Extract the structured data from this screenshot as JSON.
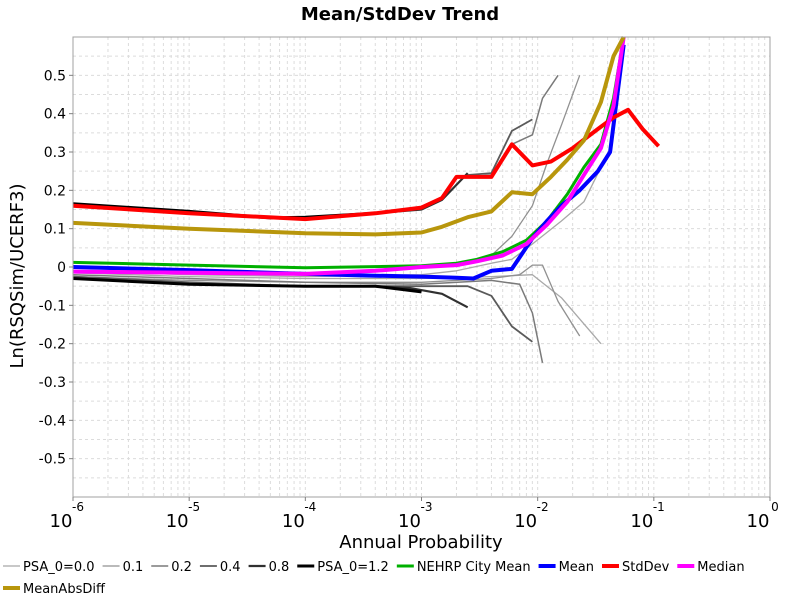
{
  "chart_data": {
    "type": "line",
    "title": "Mean/StdDev Trend",
    "xlabel": "Annual Probability",
    "ylabel": "Ln(RSQSim/UCERF3)",
    "xscale": "log",
    "xlim": [
      1e-06,
      1
    ],
    "ylim": [
      -0.6,
      0.6
    ],
    "grid": true,
    "legend_position": "bottom",
    "x_tick_base": "10",
    "x_ticks": [
      {
        "value": 1e-06,
        "exp": "-6"
      },
      {
        "value": 1e-05,
        "exp": "-5"
      },
      {
        "value": 0.0001,
        "exp": "-4"
      },
      {
        "value": 0.001,
        "exp": "-3"
      },
      {
        "value": 0.01,
        "exp": "-2"
      },
      {
        "value": 0.1,
        "exp": "-1"
      },
      {
        "value": 1,
        "exp": "0"
      }
    ],
    "y_ticks": [
      {
        "value": 0.5,
        "label": "0.5"
      },
      {
        "value": 0.4,
        "label": "0.4"
      },
      {
        "value": 0.3,
        "label": "0.3"
      },
      {
        "value": 0.2,
        "label": "0.2"
      },
      {
        "value": 0.1,
        "label": "0.1"
      },
      {
        "value": 0,
        "label": "0"
      },
      {
        "value": -0.1,
        "label": "-0.1"
      },
      {
        "value": -0.2,
        "label": "-0.2"
      },
      {
        "value": -0.3,
        "label": "-0.3"
      },
      {
        "value": -0.4,
        "label": "-0.4"
      },
      {
        "value": -0.5,
        "label": "-0.5"
      }
    ],
    "series": [
      {
        "name": "PSA_0=0.0",
        "color": "#a8a8a8",
        "width": 1.3,
        "curves": [
          [
            [
              1e-06,
              -0.01
            ],
            [
              1e-05,
              -0.02
            ],
            [
              0.0001,
              -0.025
            ],
            [
              0.001,
              -0.02
            ],
            [
              0.002,
              -0.01
            ],
            [
              0.004,
              0.01
            ],
            [
              0.006,
              0.02
            ],
            [
              0.009,
              0.06
            ],
            [
              0.012,
              0.09
            ],
            [
              0.016,
              0.12
            ],
            [
              0.025,
              0.17
            ],
            [
              0.035,
              0.26
            ]
          ],
          [
            [
              1e-06,
              -0.015
            ],
            [
              1e-05,
              -0.025
            ],
            [
              0.0001,
              -0.03
            ],
            [
              0.001,
              -0.03
            ],
            [
              0.004,
              -0.025
            ],
            [
              0.009,
              -0.02
            ],
            [
              0.012,
              -0.05
            ],
            [
              0.016,
              -0.08
            ],
            [
              0.035,
              -0.2
            ]
          ]
        ]
      },
      {
        "name": "0.1",
        "color": "#909090",
        "width": 1.3,
        "curves": [
          [
            [
              0.004,
              0.03
            ],
            [
              0.006,
              0.08
            ],
            [
              0.009,
              0.16
            ],
            [
              0.012,
              0.27
            ],
            [
              0.016,
              0.37
            ],
            [
              0.023,
              0.5
            ]
          ],
          [
            [
              1e-06,
              -0.025
            ],
            [
              1e-05,
              -0.035
            ],
            [
              0.0001,
              -0.04
            ],
            [
              0.001,
              -0.04
            ],
            [
              0.004,
              -0.03
            ],
            [
              0.007,
              -0.02
            ],
            [
              0.009,
              0.005
            ],
            [
              0.011,
              0.005
            ],
            [
              0.015,
              -0.09
            ],
            [
              0.023,
              -0.18
            ]
          ]
        ]
      },
      {
        "name": "0.2",
        "color": "#7a7a7a",
        "width": 1.5,
        "curves": [
          [
            [
              0.0025,
              0.235
            ],
            [
              0.004,
              0.24
            ],
            [
              0.006,
              0.32
            ],
            [
              0.009,
              0.345
            ],
            [
              0.011,
              0.44
            ],
            [
              0.015,
              0.5
            ]
          ],
          [
            [
              1e-06,
              -0.02
            ],
            [
              1e-05,
              -0.03
            ],
            [
              0.0001,
              -0.04
            ],
            [
              0.001,
              -0.045
            ],
            [
              0.004,
              -0.035
            ],
            [
              0.007,
              -0.045
            ],
            [
              0.009,
              -0.12
            ],
            [
              0.011,
              -0.25
            ]
          ]
        ]
      },
      {
        "name": "0.4",
        "color": "#5a5a5a",
        "width": 1.8,
        "curves": [
          [
            [
              0.0025,
              0.24
            ],
            [
              0.004,
              0.245
            ],
            [
              0.006,
              0.355
            ],
            [
              0.009,
              0.385
            ]
          ],
          [
            [
              1e-06,
              -0.025
            ],
            [
              1e-05,
              -0.04
            ],
            [
              0.0001,
              -0.05
            ],
            [
              0.001,
              -0.05
            ],
            [
              0.0025,
              -0.05
            ],
            [
              0.004,
              -0.075
            ],
            [
              0.006,
              -0.155
            ],
            [
              0.009,
              -0.195
            ]
          ]
        ]
      },
      {
        "name": "0.8",
        "color": "#303030",
        "width": 2.2,
        "curves": [
          [
            [
              1e-06,
              0.16
            ],
            [
              1e-05,
              0.14
            ],
            [
              0.0001,
              0.125
            ],
            [
              0.0004,
              0.14
            ],
            [
              0.001,
              0.15
            ],
            [
              0.0015,
              0.175
            ],
            [
              0.0025,
              0.245
            ]
          ],
          [
            [
              1e-06,
              -0.03
            ],
            [
              1e-05,
              -0.045
            ],
            [
              0.0001,
              -0.05
            ],
            [
              0.0004,
              -0.05
            ],
            [
              0.0008,
              -0.055
            ],
            [
              0.0015,
              -0.07
            ],
            [
              0.0025,
              -0.105
            ]
          ]
        ]
      },
      {
        "name": "PSA_0=1.2",
        "color": "#000000",
        "width": 3.0,
        "curves": [
          [
            [
              1e-06,
              0.165
            ],
            [
              1e-05,
              0.145
            ],
            [
              5e-05,
              0.128
            ],
            [
              0.0001,
              0.13
            ],
            [
              0.0004,
              0.14
            ],
            [
              0.001,
              0.155
            ]
          ],
          [
            [
              1e-06,
              -0.03
            ],
            [
              1e-05,
              -0.045
            ],
            [
              0.0001,
              -0.05
            ],
            [
              0.0004,
              -0.05
            ],
            [
              0.001,
              -0.065
            ]
          ]
        ]
      },
      {
        "name": "NEHRP City Mean",
        "color": "#00b000",
        "width": 3.0,
        "curves": [
          [
            [
              1e-06,
              0.012
            ],
            [
              1e-05,
              0.005
            ],
            [
              0.0001,
              -0.002
            ],
            [
              0.001,
              0.003
            ],
            [
              0.002,
              0.01
            ],
            [
              0.003,
              0.02
            ],
            [
              0.005,
              0.04
            ],
            [
              0.008,
              0.07
            ],
            [
              0.012,
              0.12
            ],
            [
              0.018,
              0.19
            ],
            [
              0.025,
              0.26
            ],
            [
              0.035,
              0.32
            ],
            [
              0.045,
              0.44
            ],
            [
              0.055,
              0.6
            ]
          ]
        ]
      },
      {
        "name": "Mean",
        "color": "#0000ff",
        "width": 4.0,
        "curves": [
          [
            [
              1e-06,
              0.0
            ],
            [
              1e-05,
              -0.008
            ],
            [
              0.0001,
              -0.018
            ],
            [
              0.0003,
              -0.022
            ],
            [
              0.001,
              -0.025
            ],
            [
              0.002,
              -0.028
            ],
            [
              0.0028,
              -0.03
            ],
            [
              0.004,
              -0.01
            ],
            [
              0.006,
              -0.005
            ],
            [
              0.009,
              0.075
            ],
            [
              0.012,
              0.12
            ],
            [
              0.016,
              0.16
            ],
            [
              0.023,
              0.2
            ],
            [
              0.033,
              0.25
            ],
            [
              0.042,
              0.3
            ],
            [
              0.055,
              0.58
            ]
          ]
        ]
      },
      {
        "name": "StdDev",
        "color": "#ff0000",
        "width": 4.0,
        "curves": [
          [
            [
              1e-06,
              0.16
            ],
            [
              1e-05,
              0.14
            ],
            [
              0.0001,
              0.125
            ],
            [
              0.0004,
              0.14
            ],
            [
              0.001,
              0.155
            ],
            [
              0.0015,
              0.18
            ],
            [
              0.002,
              0.235
            ],
            [
              0.004,
              0.235
            ],
            [
              0.006,
              0.32
            ],
            [
              0.009,
              0.265
            ],
            [
              0.013,
              0.275
            ],
            [
              0.02,
              0.31
            ],
            [
              0.033,
              0.36
            ],
            [
              0.045,
              0.39
            ],
            [
              0.06,
              0.41
            ],
            [
              0.08,
              0.36
            ],
            [
              0.11,
              0.315
            ]
          ]
        ]
      },
      {
        "name": "Median",
        "color": "#ff00ff",
        "width": 4.0,
        "curves": [
          [
            [
              1e-06,
              -0.012
            ],
            [
              1e-05,
              -0.015
            ],
            [
              0.0001,
              -0.018
            ],
            [
              0.0004,
              -0.01
            ],
            [
              0.001,
              0.0
            ],
            [
              0.002,
              0.005
            ],
            [
              0.003,
              0.015
            ],
            [
              0.005,
              0.03
            ],
            [
              0.008,
              0.06
            ],
            [
              0.012,
              0.11
            ],
            [
              0.018,
              0.17
            ],
            [
              0.025,
              0.24
            ],
            [
              0.035,
              0.31
            ],
            [
              0.045,
              0.42
            ],
            [
              0.055,
              0.6
            ]
          ]
        ]
      },
      {
        "name": "MeanAbsDiff",
        "color": "#b8960c",
        "width": 4.0,
        "curves": [
          [
            [
              1e-06,
              0.115
            ],
            [
              1e-05,
              0.1
            ],
            [
              0.0001,
              0.088
            ],
            [
              0.0004,
              0.085
            ],
            [
              0.001,
              0.09
            ],
            [
              0.0015,
              0.105
            ],
            [
              0.0025,
              0.13
            ],
            [
              0.004,
              0.145
            ],
            [
              0.006,
              0.195
            ],
            [
              0.009,
              0.19
            ],
            [
              0.013,
              0.235
            ],
            [
              0.018,
              0.28
            ],
            [
              0.025,
              0.33
            ],
            [
              0.035,
              0.43
            ],
            [
              0.045,
              0.55
            ],
            [
              0.055,
              0.6
            ]
          ]
        ]
      }
    ]
  }
}
